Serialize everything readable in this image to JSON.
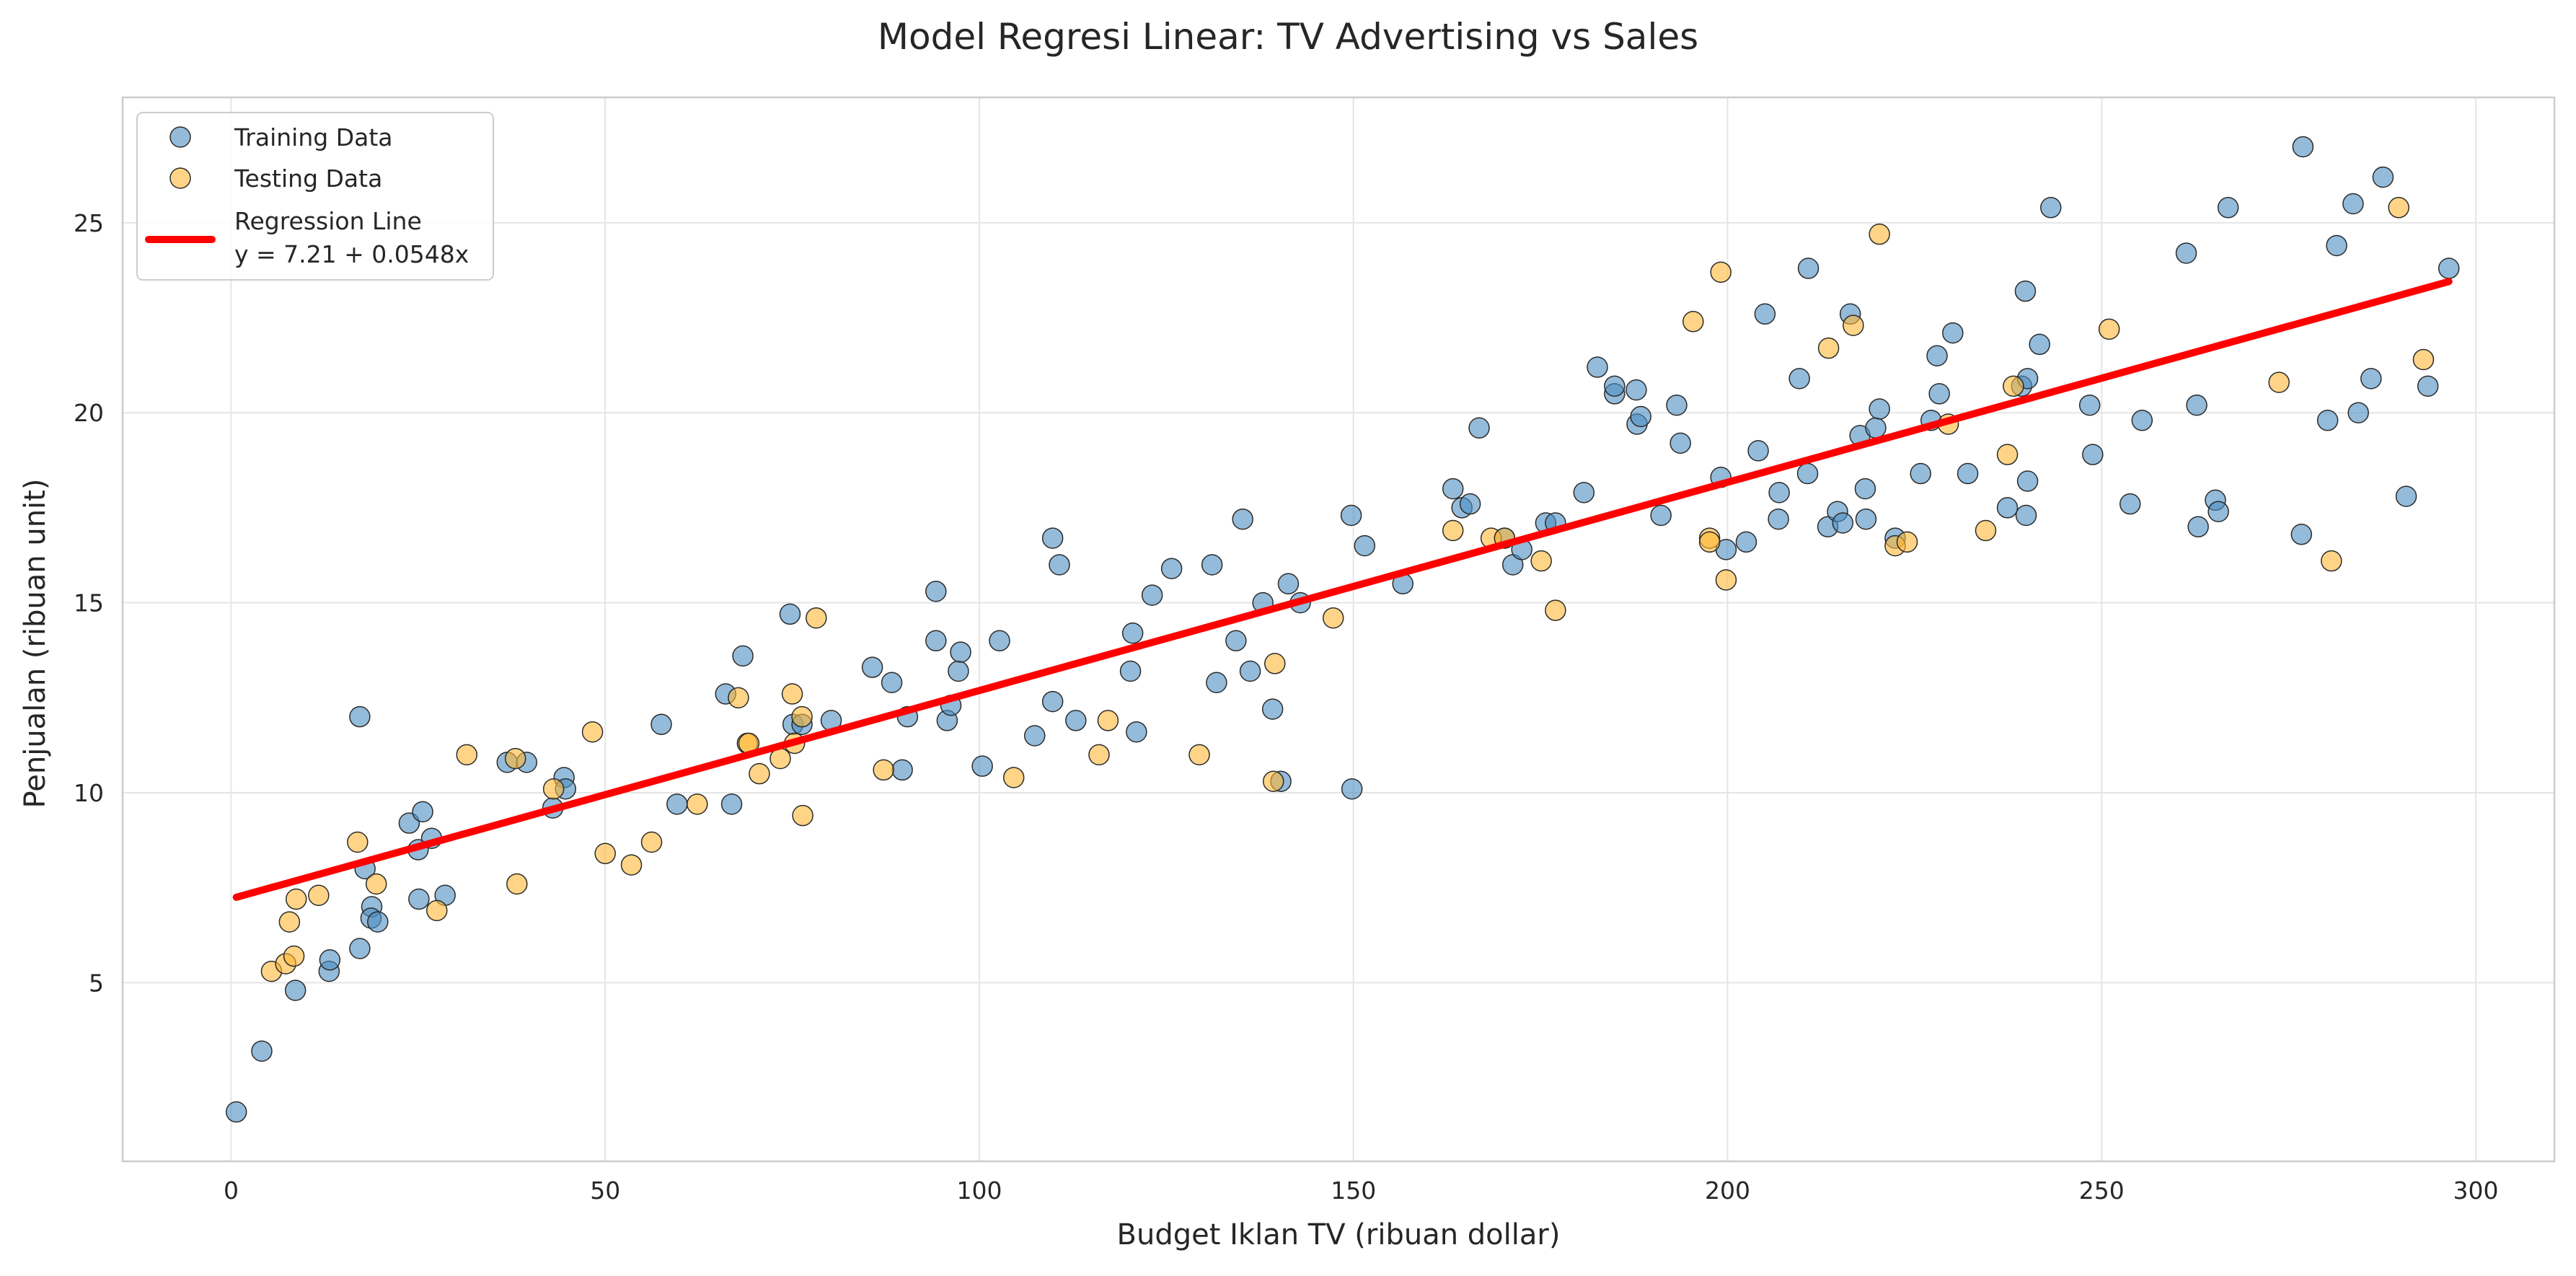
{
  "chart_data": {
    "type": "scatter",
    "title": "Model Regresi Linear: TV Advertising vs Sales",
    "xlabel": "Budget Iklan TV (ribuan dollar)",
    "ylabel": "Penjualan (ribuan unit)",
    "xlim": [
      -14.5,
      310.5
    ],
    "ylim": [
      0.3,
      28.3
    ],
    "xticks": [
      0,
      50,
      100,
      150,
      200,
      250,
      300
    ],
    "yticks": [
      5,
      10,
      15,
      20,
      25
    ],
    "grid": true,
    "legend_position": "top-left",
    "colors": {
      "training": "#4C8EC2",
      "testing": "#FFB836",
      "regression": "#FF0000",
      "marker_edge": "#2b2b2b"
    },
    "legend": {
      "training_label": "Training Data",
      "testing_label": "Testing Data",
      "regression_label": "Regression Line",
      "equation": "y = 7.21 + 0.0548x"
    },
    "regression": {
      "intercept": 7.21,
      "slope": 0.0548,
      "x_range": [
        0.7,
        296.4
      ]
    },
    "series": [
      {
        "name": "Training Data",
        "points": [
          [
            0.7,
            1.6
          ],
          [
            4.1,
            3.2
          ],
          [
            8.6,
            4.8
          ],
          [
            13.1,
            5.3
          ],
          [
            13.2,
            5.6
          ],
          [
            17.2,
            5.9
          ],
          [
            17.9,
            8.0
          ],
          [
            18.8,
            7.0
          ],
          [
            18.7,
            6.7
          ],
          [
            19.6,
            6.6
          ],
          [
            17.2,
            12.0
          ],
          [
            23.8,
            9.2
          ],
          [
            25.0,
            8.5
          ],
          [
            25.6,
            9.5
          ],
          [
            26.8,
            8.8
          ],
          [
            25.1,
            7.2
          ],
          [
            28.6,
            7.3
          ],
          [
            36.9,
            10.8
          ],
          [
            39.5,
            10.8
          ],
          [
            43.0,
            9.6
          ],
          [
            44.5,
            10.4
          ],
          [
            44.7,
            10.1
          ],
          [
            57.5,
            11.8
          ],
          [
            59.6,
            9.7
          ],
          [
            66.1,
            12.6
          ],
          [
            66.9,
            9.7
          ],
          [
            68.4,
            13.6
          ],
          [
            75.1,
            11.8
          ],
          [
            74.7,
            14.7
          ],
          [
            76.3,
            11.8
          ],
          [
            80.2,
            11.9
          ],
          [
            85.7,
            13.3
          ],
          [
            88.3,
            12.9
          ],
          [
            89.7,
            10.6
          ],
          [
            90.4,
            12.0
          ],
          [
            94.2,
            15.3
          ],
          [
            94.2,
            14.0
          ],
          [
            95.7,
            11.9
          ],
          [
            96.2,
            12.3
          ],
          [
            97.2,
            13.2
          ],
          [
            97.5,
            13.7
          ],
          [
            100.4,
            10.7
          ],
          [
            102.7,
            14.0
          ],
          [
            107.4,
            11.5
          ],
          [
            109.8,
            16.7
          ],
          [
            110.7,
            16.0
          ],
          [
            109.8,
            12.4
          ],
          [
            112.9,
            11.9
          ],
          [
            120.2,
            13.2
          ],
          [
            120.5,
            14.2
          ],
          [
            121.0,
            11.6
          ],
          [
            123.1,
            15.2
          ],
          [
            125.7,
            15.9
          ],
          [
            131.1,
            16.0
          ],
          [
            131.7,
            12.9
          ],
          [
            134.3,
            14.0
          ],
          [
            135.2,
            17.2
          ],
          [
            136.2,
            13.2
          ],
          [
            137.9,
            15.0
          ],
          [
            139.2,
            12.2
          ],
          [
            140.3,
            10.3
          ],
          [
            141.3,
            15.5
          ],
          [
            142.9,
            15.0
          ],
          [
            149.7,
            17.3
          ],
          [
            149.8,
            10.1
          ],
          [
            151.5,
            16.5
          ],
          [
            156.6,
            15.5
          ],
          [
            163.3,
            18.0
          ],
          [
            164.5,
            17.5
          ],
          [
            165.6,
            17.6
          ],
          [
            166.8,
            19.6
          ],
          [
            170.2,
            16.7
          ],
          [
            171.3,
            16.0
          ],
          [
            172.5,
            16.4
          ],
          [
            175.7,
            17.1
          ],
          [
            177.0,
            17.1
          ],
          [
            180.8,
            17.9
          ],
          [
            182.6,
            21.2
          ],
          [
            184.9,
            20.5
          ],
          [
            184.9,
            20.7
          ],
          [
            187.8,
            20.6
          ],
          [
            187.9,
            19.7
          ],
          [
            188.4,
            19.9
          ],
          [
            191.1,
            17.3
          ],
          [
            193.2,
            20.2
          ],
          [
            193.7,
            19.2
          ],
          [
            199.1,
            18.3
          ],
          [
            199.8,
            16.4
          ],
          [
            202.5,
            16.6
          ],
          [
            204.1,
            19.0
          ],
          [
            205.0,
            22.6
          ],
          [
            206.8,
            17.2
          ],
          [
            206.9,
            17.9
          ],
          [
            209.6,
            20.9
          ],
          [
            210.7,
            18.4
          ],
          [
            210.8,
            23.8
          ],
          [
            213.4,
            17.0
          ],
          [
            214.7,
            17.4
          ],
          [
            215.4,
            17.1
          ],
          [
            216.4,
            22.6
          ],
          [
            217.7,
            19.4
          ],
          [
            218.4,
            18.0
          ],
          [
            218.5,
            17.2
          ],
          [
            219.8,
            19.6
          ],
          [
            220.3,
            20.1
          ],
          [
            222.4,
            16.7
          ],
          [
            225.8,
            18.4
          ],
          [
            227.2,
            19.8
          ],
          [
            228.0,
            21.5
          ],
          [
            228.3,
            20.5
          ],
          [
            230.1,
            22.1
          ],
          [
            232.1,
            18.4
          ],
          [
            237.4,
            17.5
          ],
          [
            239.3,
            20.7
          ],
          [
            239.8,
            23.2
          ],
          [
            239.9,
            17.3
          ],
          [
            240.1,
            18.2
          ],
          [
            240.1,
            20.9
          ],
          [
            241.7,
            21.8
          ],
          [
            243.2,
            25.4
          ],
          [
            248.4,
            20.2
          ],
          [
            248.8,
            18.9
          ],
          [
            253.8,
            17.6
          ],
          [
            255.4,
            19.8
          ],
          [
            261.3,
            24.2
          ],
          [
            262.7,
            20.2
          ],
          [
            262.9,
            17.0
          ],
          [
            265.2,
            17.7
          ],
          [
            265.6,
            17.4
          ],
          [
            266.9,
            25.4
          ],
          [
            276.7,
            16.8
          ],
          [
            276.9,
            27.0
          ],
          [
            280.2,
            19.8
          ],
          [
            281.4,
            24.4
          ],
          [
            283.6,
            25.5
          ],
          [
            284.3,
            20.0
          ],
          [
            286.0,
            20.9
          ],
          [
            287.6,
            26.2
          ],
          [
            290.7,
            17.8
          ],
          [
            293.6,
            20.7
          ],
          [
            296.4,
            23.8
          ]
        ]
      },
      {
        "name": "Testing Data",
        "points": [
          [
            5.4,
            5.3
          ],
          [
            7.3,
            5.5
          ],
          [
            7.8,
            6.6
          ],
          [
            8.4,
            5.7
          ],
          [
            8.7,
            7.2
          ],
          [
            11.7,
            7.3
          ],
          [
            16.9,
            8.7
          ],
          [
            19.4,
            7.6
          ],
          [
            27.5,
            6.9
          ],
          [
            31.5,
            11.0
          ],
          [
            38.0,
            10.9
          ],
          [
            38.2,
            7.6
          ],
          [
            43.1,
            10.1
          ],
          [
            48.3,
            11.6
          ],
          [
            50.0,
            8.4
          ],
          [
            53.5,
            8.1
          ],
          [
            56.2,
            8.7
          ],
          [
            62.3,
            9.7
          ],
          [
            67.8,
            12.5
          ],
          [
            69.0,
            11.3
          ],
          [
            69.2,
            11.3
          ],
          [
            70.6,
            10.5
          ],
          [
            73.4,
            10.9
          ],
          [
            75.0,
            12.6
          ],
          [
            75.3,
            11.3
          ],
          [
            76.3,
            12.0
          ],
          [
            76.4,
            9.4
          ],
          [
            78.2,
            14.6
          ],
          [
            87.2,
            10.6
          ],
          [
            104.6,
            10.4
          ],
          [
            116.0,
            11.0
          ],
          [
            117.2,
            11.9
          ],
          [
            129.4,
            11.0
          ],
          [
            139.3,
            10.3
          ],
          [
            139.5,
            13.4
          ],
          [
            147.3,
            14.6
          ],
          [
            163.3,
            16.9
          ],
          [
            168.4,
            16.7
          ],
          [
            170.2,
            16.7
          ],
          [
            175.1,
            16.1
          ],
          [
            177.0,
            14.8
          ],
          [
            195.4,
            22.4
          ],
          [
            197.6,
            16.7
          ],
          [
            197.6,
            16.6
          ],
          [
            199.1,
            23.7
          ],
          [
            199.8,
            15.6
          ],
          [
            213.5,
            21.7
          ],
          [
            216.8,
            22.3
          ],
          [
            220.3,
            24.7
          ],
          [
            222.4,
            16.5
          ],
          [
            224.0,
            16.6
          ],
          [
            229.5,
            19.7
          ],
          [
            234.5,
            16.9
          ],
          [
            237.4,
            18.9
          ],
          [
            238.2,
            20.7
          ],
          [
            251.0,
            22.2
          ],
          [
            273.7,
            20.8
          ],
          [
            280.7,
            16.1
          ],
          [
            289.7,
            25.4
          ],
          [
            293.0,
            21.4
          ]
        ]
      }
    ]
  }
}
